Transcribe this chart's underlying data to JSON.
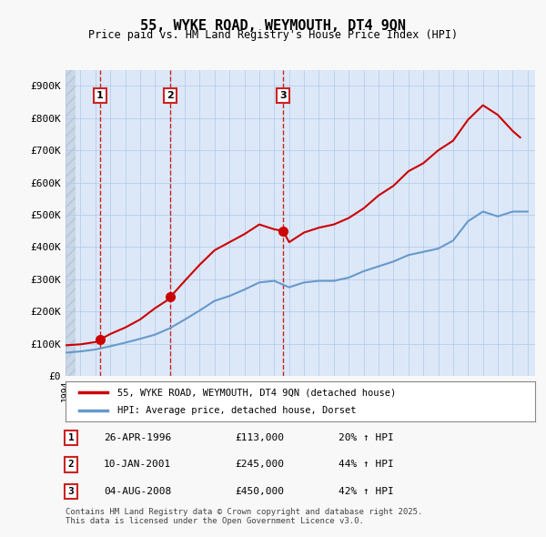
{
  "title": "55, WYKE ROAD, WEYMOUTH, DT4 9QN",
  "subtitle": "Price paid vs. HM Land Registry's House Price Index (HPI)",
  "ylabel_ticks": [
    "£0",
    "£100K",
    "£200K",
    "£300K",
    "£400K",
    "£500K",
    "£600K",
    "£700K",
    "£800K",
    "£900K"
  ],
  "ytick_vals": [
    0,
    100000,
    200000,
    300000,
    400000,
    500000,
    600000,
    700000,
    800000,
    900000
  ],
  "ylim": [
    0,
    950000
  ],
  "xlim_start": 1994.0,
  "xlim_end": 2025.5,
  "bg_color": "#f0f4ff",
  "plot_bg": "#dce8f8",
  "grid_color": "#b0c8e8",
  "hatch_color": "#c0d0e8",
  "sale_markers": [
    {
      "num": 1,
      "year": 1996.32,
      "price": 113000,
      "label": "1"
    },
    {
      "num": 2,
      "year": 2001.03,
      "price": 245000,
      "label": "2"
    },
    {
      "num": 3,
      "year": 2008.59,
      "price": 450000,
      "label": "3"
    }
  ],
  "sale_dates": [
    "26-APR-1996",
    "10-JAN-2001",
    "04-AUG-2008"
  ],
  "sale_prices": [
    "£113,000",
    "£245,000",
    "£450,000"
  ],
  "sale_hpi": [
    "20% ↑ HPI",
    "44% ↑ HPI",
    "42% ↑ HPI"
  ],
  "legend_label_red": "55, WYKE ROAD, WEYMOUTH, DT4 9QN (detached house)",
  "legend_label_blue": "HPI: Average price, detached house, Dorset",
  "footnote": "Contains HM Land Registry data © Crown copyright and database right 2025.\nThis data is licensed under the Open Government Licence v3.0.",
  "red_color": "#cc0000",
  "blue_color": "#6699cc",
  "marker_box_color": "#cc2222",
  "hpi_years": [
    1994,
    1995,
    1996,
    1997,
    1998,
    1999,
    2000,
    2001,
    2002,
    2003,
    2004,
    2005,
    2006,
    2007,
    2008,
    2009,
    2010,
    2011,
    2012,
    2013,
    2014,
    2015,
    2016,
    2017,
    2018,
    2019,
    2020,
    2021,
    2022,
    2023,
    2024,
    2025
  ],
  "hpi_vals": [
    72000,
    76000,
    82000,
    92000,
    103000,
    115000,
    128000,
    148000,
    175000,
    203000,
    233000,
    248000,
    268000,
    290000,
    295000,
    275000,
    290000,
    295000,
    295000,
    305000,
    325000,
    340000,
    355000,
    375000,
    385000,
    395000,
    420000,
    480000,
    510000,
    495000,
    510000,
    510000
  ],
  "price_years": [
    1994,
    1995,
    1996,
    1996.32,
    1997,
    1998,
    1999,
    2000,
    2001,
    2001.03,
    2002,
    2003,
    2004,
    2005,
    2006,
    2007,
    2008,
    2008.59,
    2009,
    2010,
    2011,
    2012,
    2013,
    2014,
    2015,
    2016,
    2017,
    2018,
    2019,
    2020,
    2021,
    2022,
    2023,
    2024,
    2024.5
  ],
  "price_vals": [
    95000,
    98000,
    105000,
    113000,
    130000,
    150000,
    175000,
    210000,
    240000,
    245000,
    295000,
    345000,
    390000,
    415000,
    440000,
    470000,
    455000,
    450000,
    415000,
    445000,
    460000,
    470000,
    490000,
    520000,
    560000,
    590000,
    635000,
    660000,
    700000,
    730000,
    795000,
    840000,
    810000,
    760000,
    740000
  ]
}
